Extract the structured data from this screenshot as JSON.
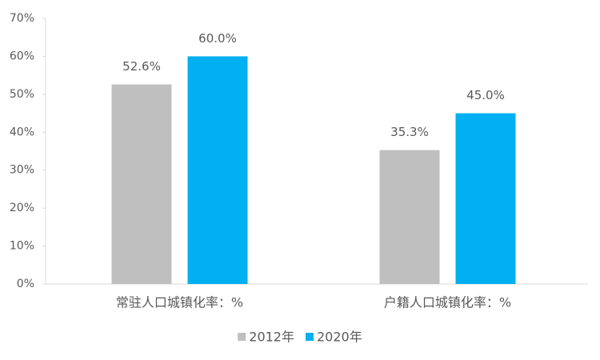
{
  "chart_data": {
    "type": "bar",
    "categories": [
      "常驻人口城镇化率：%",
      "户籍人口城镇化率：%"
    ],
    "series": [
      {
        "name": "2012年",
        "color": "#bfbfbf",
        "values": [
          52.6,
          35.3
        ],
        "value_labels": [
          "52.6%",
          "35.3%"
        ]
      },
      {
        "name": "2020年",
        "color": "#00b0f0",
        "values": [
          60.0,
          45.0
        ],
        "value_labels": [
          "60.0%",
          "45.0%"
        ]
      }
    ],
    "ylim": [
      0,
      70
    ],
    "yticks": [
      {
        "value": 0,
        "label": "0%"
      },
      {
        "value": 10,
        "label": "10%"
      },
      {
        "value": 20,
        "label": "20%"
      },
      {
        "value": 30,
        "label": "30%"
      },
      {
        "value": 40,
        "label": "40%"
      },
      {
        "value": 50,
        "label": "50%"
      },
      {
        "value": 60,
        "label": "60%"
      },
      {
        "value": 70,
        "label": "70%"
      }
    ],
    "grid": false,
    "legend": "bottom"
  }
}
